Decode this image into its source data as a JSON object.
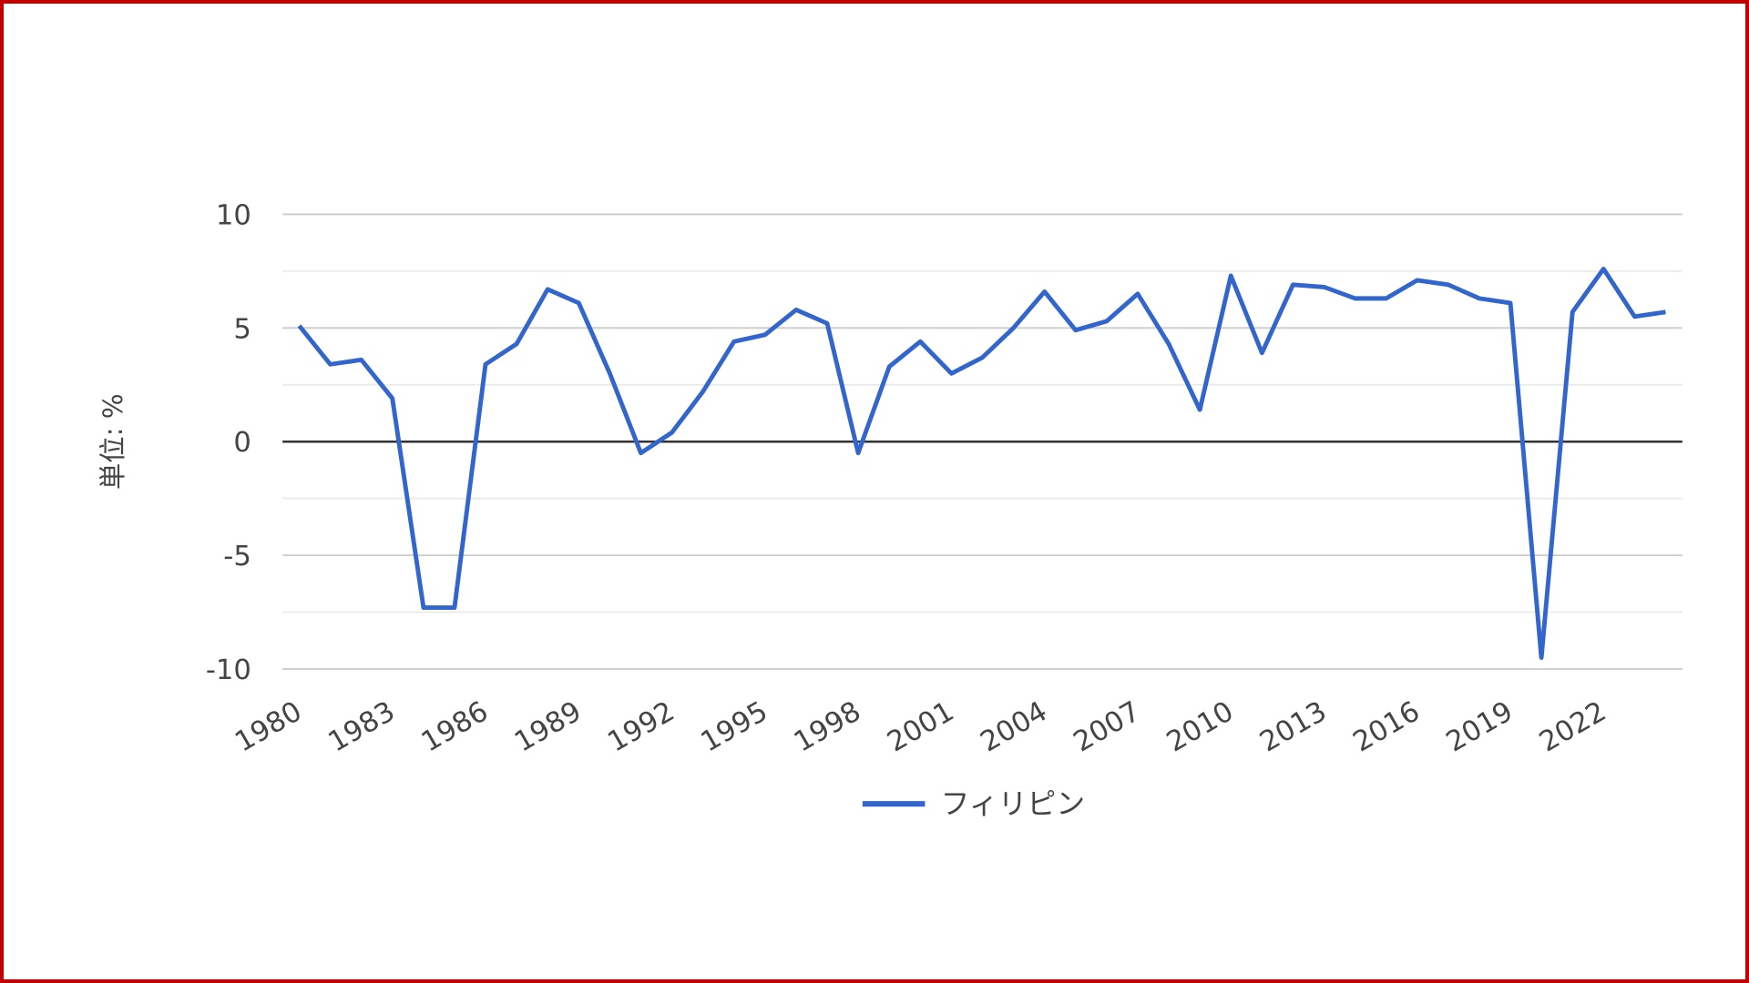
{
  "chart_data": {
    "type": "line",
    "title": "",
    "xlabel": "",
    "ylabel": "単位: %",
    "ylim": [
      -10,
      10
    ],
    "yticks": [
      "10",
      "5",
      "0",
      "-5",
      "-10"
    ],
    "ytick_values": [
      10,
      5,
      0,
      -5,
      -10
    ],
    "minor_grid_values": [
      7.5,
      2.5,
      -2.5,
      -7.5
    ],
    "grid": true,
    "xticks": [
      "1980",
      "1983",
      "1986",
      "1989",
      "1992",
      "1995",
      "1998",
      "2001",
      "2004",
      "2007",
      "2010",
      "2013",
      "2016",
      "2019",
      "2022"
    ],
    "x": [
      1980,
      1981,
      1982,
      1983,
      1984,
      1985,
      1986,
      1987,
      1988,
      1989,
      1990,
      1991,
      1992,
      1993,
      1994,
      1995,
      1996,
      1997,
      1998,
      1999,
      2000,
      2001,
      2002,
      2003,
      2004,
      2005,
      2006,
      2007,
      2008,
      2009,
      2010,
      2011,
      2012,
      2013,
      2014,
      2015,
      2016,
      2017,
      2018,
      2019,
      2020,
      2021,
      2022,
      2023,
      2024
    ],
    "series": [
      {
        "name": "フィリピン",
        "color": "#3366cc",
        "values": [
          5.1,
          3.4,
          3.6,
          1.9,
          -7.3,
          -7.3,
          3.4,
          4.3,
          6.7,
          6.1,
          3.0,
          -0.5,
          0.4,
          2.2,
          4.4,
          4.7,
          5.8,
          5.2,
          -0.5,
          3.3,
          4.4,
          3.0,
          3.7,
          5.0,
          6.6,
          4.9,
          5.3,
          6.5,
          4.3,
          1.4,
          7.3,
          3.9,
          6.9,
          6.8,
          6.3,
          6.3,
          7.1,
          6.9,
          6.3,
          6.1,
          -9.5,
          5.7,
          7.6,
          5.5,
          5.7
        ]
      }
    ],
    "legend_position": "bottom",
    "border_color": "#c00000"
  }
}
